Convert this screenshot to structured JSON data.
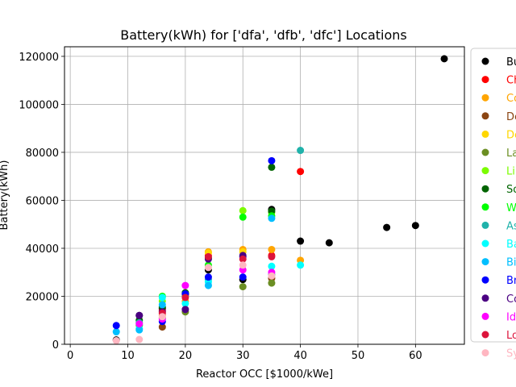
{
  "chart_data": {
    "type": "scatter",
    "title": "Battery(kWh) for ['dfa', 'dfb', 'dfc'] Locations",
    "xlabel": "Reactor OCC [$1000/kWe]",
    "ylabel": "Battery(kWh)",
    "xlim": [
      -1,
      68.5
    ],
    "ylim": [
      0,
      124000
    ],
    "xticks": [
      0,
      10,
      20,
      30,
      40,
      50,
      60
    ],
    "yticks": [
      0,
      20000,
      40000,
      60000,
      80000,
      100000,
      120000
    ],
    "grid": true,
    "legend_position": "right",
    "series": [
      {
        "name": "Bu",
        "color": "#000000",
        "points": [
          [
            65,
            119000
          ],
          [
            60,
            49500
          ],
          [
            55,
            48700
          ],
          [
            45,
            42300
          ],
          [
            40,
            43000
          ],
          [
            35,
            56200
          ],
          [
            30,
            27000
          ],
          [
            24,
            31000
          ],
          [
            20,
            21000
          ],
          [
            16,
            14800
          ],
          [
            12,
            12000
          ],
          [
            8,
            1800
          ]
        ]
      },
      {
        "name": "Ch",
        "color": "#ff0000",
        "points": [
          [
            40,
            72000
          ],
          [
            35,
            37000
          ],
          [
            24,
            37000
          ],
          [
            20,
            20500
          ],
          [
            16,
            14000
          ]
        ]
      },
      {
        "name": "Co",
        "color": "#ffa500",
        "points": [
          [
            40,
            35000
          ],
          [
            35,
            39500
          ],
          [
            30,
            39500
          ],
          [
            24,
            38500
          ],
          [
            20,
            18000
          ],
          [
            16,
            12000
          ]
        ]
      },
      {
        "name": "De",
        "color": "#8b4513",
        "points": [
          [
            16,
            7200
          ],
          [
            35,
            27500
          ]
        ]
      },
      {
        "name": "De",
        "color": "#ffd700",
        "points": [
          [
            24,
            38000
          ],
          [
            30,
            38500
          ]
        ]
      },
      {
        "name": "La",
        "color": "#6b8e23",
        "points": [
          [
            35,
            25500
          ],
          [
            30,
            24000
          ],
          [
            20,
            13500
          ],
          [
            16,
            11000
          ]
        ]
      },
      {
        "name": "Li",
        "color": "#7cfc00",
        "points": [
          [
            30,
            55700
          ],
          [
            35,
            55000
          ],
          [
            20,
            20000
          ],
          [
            16,
            18000
          ]
        ]
      },
      {
        "name": "So",
        "color": "#006400",
        "points": [
          [
            35,
            73800
          ],
          [
            35,
            55500
          ],
          [
            24,
            36000
          ],
          [
            20,
            21500
          ],
          [
            16,
            15500
          ],
          [
            12,
            10000
          ]
        ]
      },
      {
        "name": "W",
        "color": "#00ff00",
        "points": [
          [
            30,
            53000
          ],
          [
            35,
            53500
          ],
          [
            24,
            33000
          ],
          [
            16,
            20000
          ],
          [
            12,
            8000
          ]
        ]
      },
      {
        "name": "As",
        "color": "#20b2aa",
        "points": [
          [
            40,
            80800
          ],
          [
            35,
            29000
          ],
          [
            24,
            27000
          ],
          [
            12,
            9000
          ]
        ]
      },
      {
        "name": "Ba",
        "color": "#00ffff",
        "points": [
          [
            40,
            33000
          ],
          [
            35,
            32500
          ],
          [
            24,
            26000
          ],
          [
            20,
            17000
          ],
          [
            16,
            19500
          ],
          [
            12,
            6500
          ]
        ]
      },
      {
        "name": "Bi",
        "color": "#00bfff",
        "points": [
          [
            35,
            52500
          ],
          [
            24,
            24500
          ],
          [
            16,
            16500
          ],
          [
            12,
            6000
          ],
          [
            8,
            5200
          ]
        ]
      },
      {
        "name": "Br",
        "color": "#0000ff",
        "points": [
          [
            35,
            76500
          ],
          [
            30,
            36500
          ],
          [
            30,
            28000
          ],
          [
            24,
            28000
          ],
          [
            20,
            21000
          ],
          [
            16,
            9500
          ],
          [
            8,
            7800
          ]
        ]
      },
      {
        "name": "Co",
        "color": "#4b0082",
        "points": [
          [
            30,
            37000
          ],
          [
            24,
            35500
          ],
          [
            20,
            14500
          ],
          [
            16,
            13500
          ],
          [
            12,
            12000
          ]
        ]
      },
      {
        "name": "Id",
        "color": "#ff00ff",
        "points": [
          [
            30,
            31000
          ],
          [
            35,
            30000
          ],
          [
            20,
            24500
          ],
          [
            16,
            10500
          ],
          [
            12,
            8500
          ]
        ]
      },
      {
        "name": "Lo",
        "color": "#dc143c",
        "points": [
          [
            35,
            36500
          ],
          [
            30,
            35500
          ],
          [
            24,
            36500
          ],
          [
            20,
            19500
          ],
          [
            16,
            13000
          ]
        ]
      },
      {
        "name": "Sy",
        "color": "#ffb6c1",
        "points": [
          [
            35,
            28500
          ],
          [
            30,
            33000
          ],
          [
            24,
            32000
          ],
          [
            16,
            11500
          ],
          [
            12,
            2000
          ],
          [
            8,
            1500
          ]
        ]
      }
    ]
  }
}
